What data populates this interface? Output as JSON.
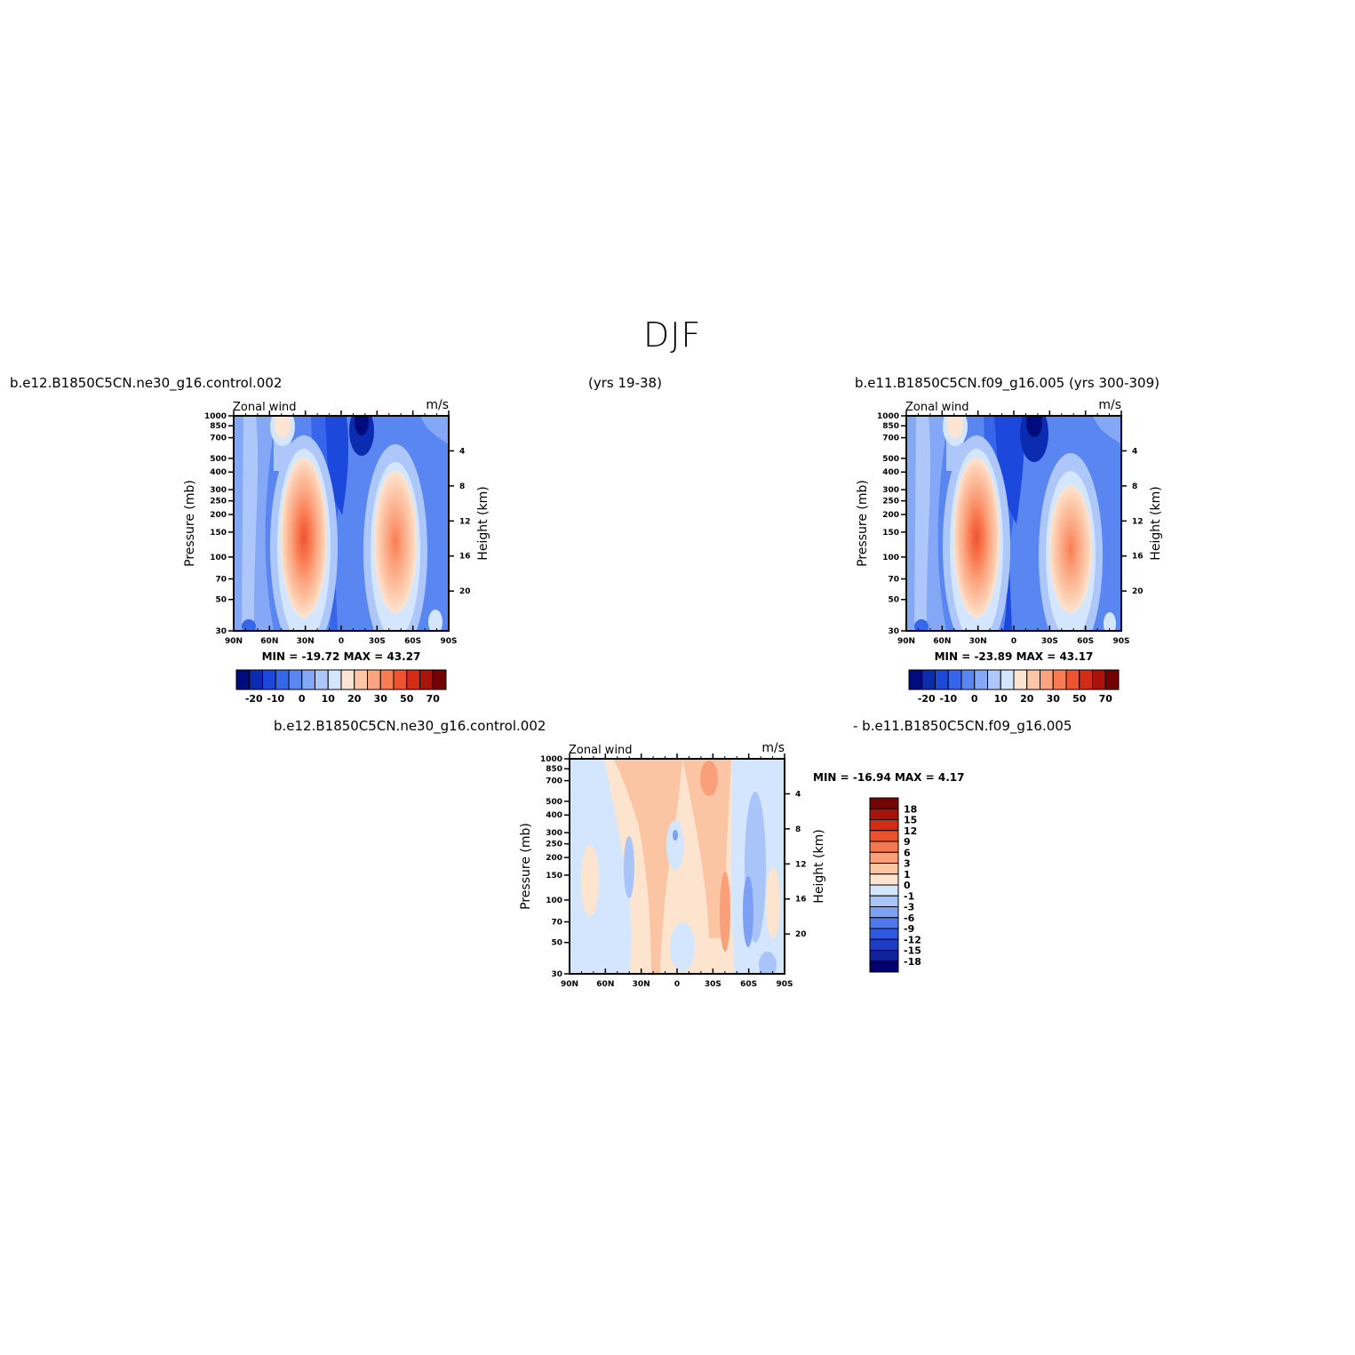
{
  "page_title": "DJF",
  "header": {
    "left_case": "b.e12.B1850C5CN.ne30_g16.control.002",
    "years_left": "(yrs 19-38)",
    "right_case": "b.e11.B1850C5CN.f09_g16.005 (yrs 300-309)"
  },
  "diff_header": {
    "left": "b.e12.B1850C5CN.ne30_g16.control.002",
    "right": "- b.e11.B1850C5CN.f09_g16.005"
  },
  "colors": {
    "abs_palette": [
      "#000c7c",
      "#0b2bb0",
      "#1c48dc",
      "#3766ea",
      "#5a86f2",
      "#85a8f6",
      "#aec7fa",
      "#d4e6fd",
      "#fde5d2",
      "#fcc6a7",
      "#fba47f",
      "#f97c52",
      "#ef5330",
      "#d52c16",
      "#aa1309",
      "#730205"
    ],
    "diff_palette": [
      "#00006e",
      "#0e229c",
      "#1d3dc4",
      "#2f59e0",
      "#5077ec",
      "#7d9ff4",
      "#a9c4f8",
      "#d4e6fd",
      "#fde4cf",
      "#fbc4a2",
      "#f9a07a",
      "#f5784d",
      "#ec502b",
      "#d12d15",
      "#a9140a",
      "#740505"
    ]
  },
  "chart_data": [
    {
      "type": "contour",
      "name_label": "Zonal wind",
      "units": "m/s",
      "case": "b.e12.B1850C5CN.ne30_g16.control.002",
      "xlabel": "",
      "ylabel": "Pressure (mb)",
      "ylabel_right": "Height (km)",
      "x_ticks": [
        "90N",
        "60N",
        "30N",
        "0",
        "30S",
        "60S",
        "90S"
      ],
      "y_ticks": [
        30,
        50,
        70,
        100,
        150,
        200,
        250,
        300,
        400,
        500,
        700,
        850,
        1000
      ],
      "y2_ticks": [
        20,
        16,
        12,
        8,
        4
      ],
      "ylim": [
        1000,
        30
      ],
      "min_label": "MIN =",
      "min_value": "-19.72",
      "max_label": "MAX =",
      "max_value": "43.27",
      "colorbar_labels": [
        "-20",
        "-10",
        "0",
        "10",
        "20",
        "30",
        "50",
        "70"
      ],
      "features": [
        {
          "type": "jet",
          "lat": 30,
          "pressure": 200,
          "value": 43.27
        },
        {
          "type": "jet",
          "lat": -45,
          "pressure": 225,
          "value": 30
        },
        {
          "type": "easterly",
          "lat": -10,
          "pressure": 30,
          "value": -19.72
        }
      ]
    },
    {
      "type": "contour",
      "name_label": "Zonal wind",
      "units": "m/s",
      "case": "b.e11.B1850C5CN.f09_g16.005",
      "xlabel": "",
      "ylabel": "Pressure (mb)",
      "ylabel_right": "Height (km)",
      "x_ticks": [
        "90N",
        "60N",
        "30N",
        "0",
        "30S",
        "60S",
        "90S"
      ],
      "y_ticks": [
        30,
        50,
        70,
        100,
        150,
        200,
        250,
        300,
        400,
        500,
        700,
        850,
        1000
      ],
      "y2_ticks": [
        20,
        16,
        12,
        8,
        4
      ],
      "ylim": [
        1000,
        30
      ],
      "min_label": "MIN =",
      "min_value": "-23.89",
      "max_label": "MAX =",
      "max_value": "43.17",
      "colorbar_labels": [
        "-20",
        "-10",
        "0",
        "10",
        "20",
        "30",
        "50",
        "70"
      ],
      "features": [
        {
          "type": "jet",
          "lat": 30,
          "pressure": 200,
          "value": 43.17
        },
        {
          "type": "jet",
          "lat": -48,
          "pressure": 250,
          "value": 27
        },
        {
          "type": "easterly",
          "lat": -15,
          "pressure": 30,
          "value": -23.89
        }
      ]
    },
    {
      "type": "contour",
      "name_label": "Zonal wind",
      "units": "m/s",
      "case": "difference",
      "xlabel": "",
      "ylabel": "Pressure (mb)",
      "ylabel_right": "Height (km)",
      "x_ticks": [
        "90N",
        "60N",
        "30N",
        "0",
        "30S",
        "60S",
        "90S"
      ],
      "y_ticks": [
        30,
        50,
        70,
        100,
        150,
        200,
        250,
        300,
        400,
        500,
        700,
        850,
        1000
      ],
      "y2_ticks": [
        20,
        16,
        12,
        8,
        4
      ],
      "ylim": [
        1000,
        30
      ],
      "min_label": "MIN =",
      "min_value": "-16.94",
      "max_label": "MAX =",
      "max_value": "4.17",
      "colorbar_labels": [
        "18",
        "15",
        "12",
        "9",
        "6",
        "3",
        "1",
        "0",
        "-1",
        "-3",
        "-6",
        "-9",
        "-12",
        "-15",
        "-18"
      ]
    }
  ]
}
